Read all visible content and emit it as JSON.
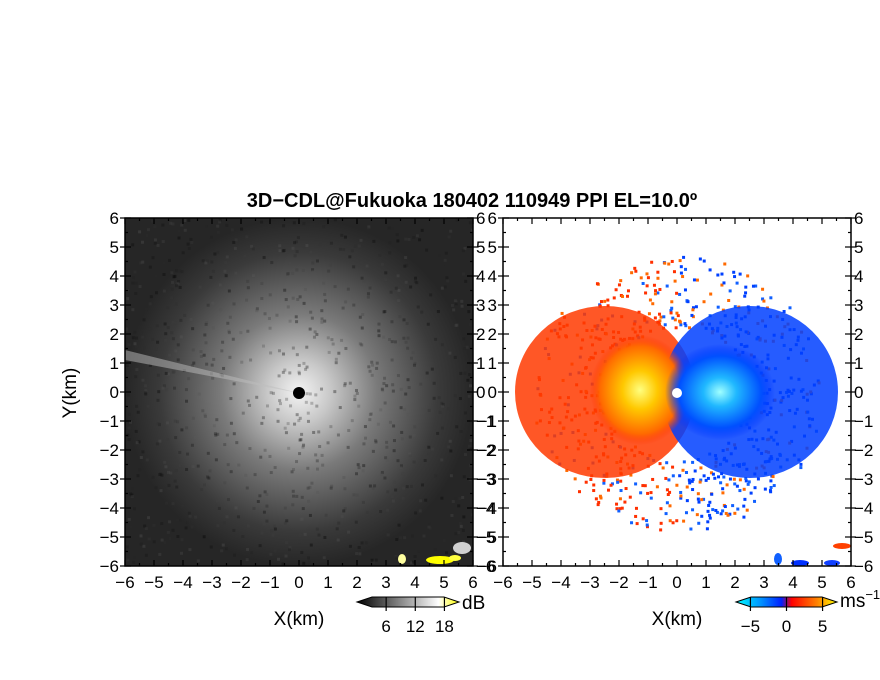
{
  "title": "3D−CDL@Fukuoka 180402 110949 PPI EL=10.0º",
  "chart_data": [
    {
      "type": "heatmap",
      "panel": "reflectivity",
      "xlabel": "X(km)",
      "ylabel": "Y(km)",
      "xlim": [
        -6,
        6
      ],
      "ylim": [
        -6,
        6
      ],
      "xticks": [
        -6,
        -5,
        -4,
        -3,
        -2,
        -1,
        0,
        1,
        2,
        3,
        4,
        5,
        6
      ],
      "yticks": [
        -6,
        -5,
        -4,
        -3,
        -2,
        -1,
        0,
        1,
        2,
        3,
        4,
        5,
        6
      ],
      "xtick_labels": [
        "−6",
        "−5",
        "−4",
        "−3",
        "−2",
        "−1",
        "0",
        "1",
        "2",
        "3",
        "4",
        "5",
        "6"
      ],
      "ytick_labels": [
        "−6",
        "−5",
        "−4",
        "−3",
        "−2",
        "−1",
        "0",
        "1",
        "2",
        "3",
        "4",
        "5",
        "6"
      ],
      "colorbar": {
        "unit": "dB",
        "ticks": [
          6,
          12,
          18
        ],
        "tick_labels": [
          "6",
          "12",
          "18"
        ],
        "range": [
          0,
          21
        ],
        "colors": [
          "#000000",
          "#ffffff",
          "#ffff00"
        ]
      },
      "grid": false
    },
    {
      "type": "heatmap",
      "panel": "doppler-velocity",
      "xlabel": "X(km)",
      "ylabel": "",
      "xlim": [
        -6,
        6
      ],
      "ylim": [
        -6,
        6
      ],
      "xticks": [
        -6,
        -5,
        -4,
        -3,
        -2,
        -1,
        0,
        1,
        2,
        3,
        4,
        5,
        6
      ],
      "yticks": [
        -6,
        -5,
        -4,
        -3,
        -2,
        -1,
        0,
        1,
        2,
        3,
        4,
        5,
        6
      ],
      "xtick_labels": [
        "−6",
        "−5",
        "−4",
        "−3",
        "−2",
        "−1",
        "0",
        "1",
        "2",
        "3",
        "4",
        "5",
        "6"
      ],
      "ytick_labels": [
        "−6",
        "−5",
        "−4",
        "−3",
        "−2",
        "−1",
        "0",
        "1",
        "2",
        "3",
        "4",
        "5",
        "6"
      ],
      "colorbar": {
        "unit": "ms",
        "unit_exponent": "−1",
        "ticks": [
          -5,
          0,
          5
        ],
        "tick_labels": [
          "−5",
          "0",
          "5"
        ],
        "range": [
          -7,
          7
        ],
        "colors": [
          "#00ffff",
          "#0044ff",
          "#ff0000",
          "#ffff00"
        ]
      },
      "grid": false
    }
  ]
}
